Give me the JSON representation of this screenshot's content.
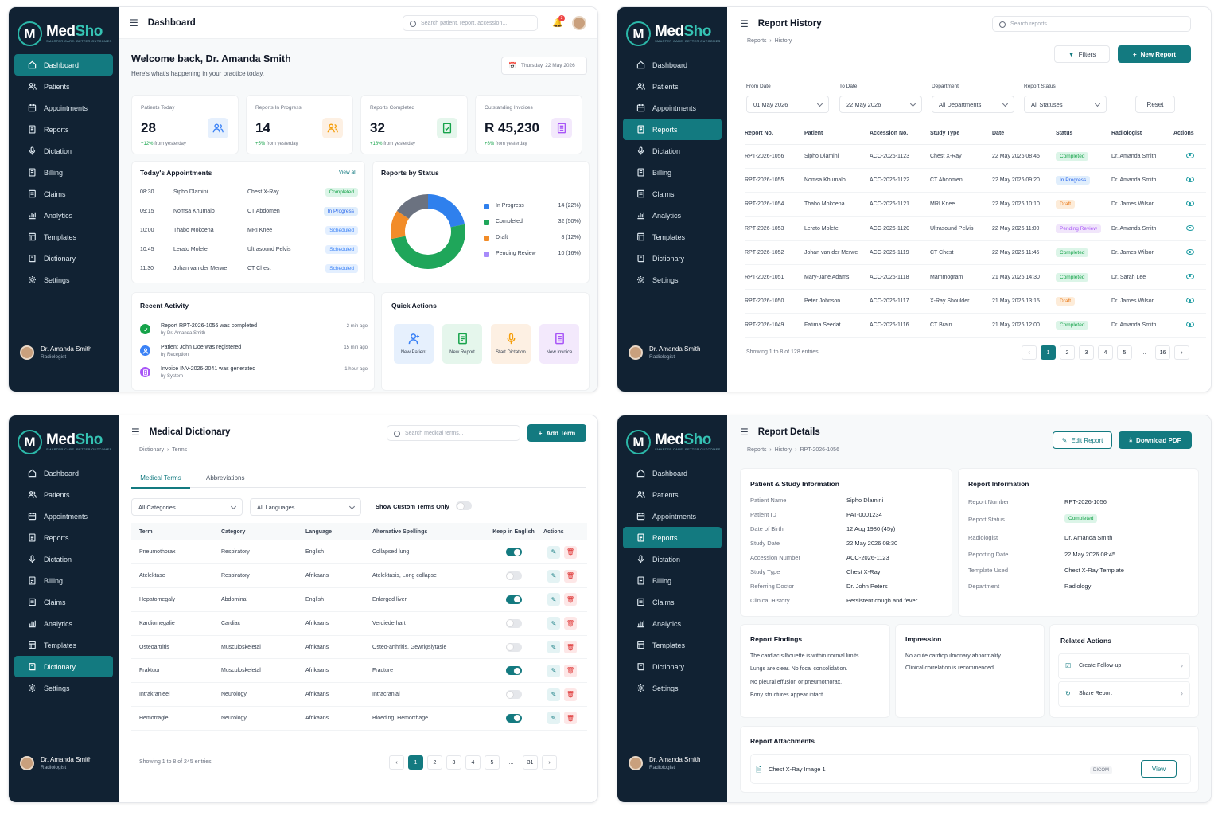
{
  "brand": {
    "name_a": "Med",
    "name_b": "Sho",
    "tagline": "SMARTER CARE. BETTER OUTCOMES",
    "logo_letter": "M"
  },
  "nav": [
    {
      "label": "Dashboard",
      "icon": "home-icon"
    },
    {
      "label": "Patients",
      "icon": "users-icon"
    },
    {
      "label": "Appointments",
      "icon": "calendar-icon"
    },
    {
      "label": "Reports",
      "icon": "report-icon"
    },
    {
      "label": "Dictation",
      "icon": "microphone-icon"
    },
    {
      "label": "Billing",
      "icon": "billing-icon"
    },
    {
      "label": "Claims",
      "icon": "claims-icon"
    },
    {
      "label": "Analytics",
      "icon": "analytics-icon"
    },
    {
      "label": "Templates",
      "icon": "template-icon"
    },
    {
      "label": "Dictionary",
      "icon": "dictionary-icon"
    },
    {
      "label": "Settings",
      "icon": "gear-icon"
    }
  ],
  "user": {
    "name": "Dr. Amanda Smith",
    "role": "Radiologist"
  },
  "dashboard": {
    "title": "Dashboard",
    "search_placeholder": "Search patient, report, accession...",
    "notif_count": "3",
    "welcome": "Welcome back, Dr. Amanda Smith",
    "subtitle": "Here's what's happening in your practice today.",
    "date": "Thursday, 22 May 2026",
    "stats": [
      {
        "label": "Patients Today",
        "value": "28",
        "change": "+12%",
        "note": "from yesterday",
        "color": "#3b82f6",
        "icon": "users-icon"
      },
      {
        "label": "Reports In Progress",
        "value": "14",
        "change": "+5%",
        "note": "from yesterday",
        "color": "#f59e0b",
        "icon": "users-icon"
      },
      {
        "label": "Reports Completed",
        "value": "32",
        "change": "+18%",
        "note": "from yesterday",
        "color": "#16a34a",
        "icon": "report-check-icon"
      },
      {
        "label": "Outstanding Invoices",
        "value": "R 45,230",
        "change": "+8%",
        "note": "from yesterday",
        "color": "#a855f7",
        "icon": "invoice-icon"
      }
    ],
    "appointments": {
      "title": "Today's Appointments",
      "view_all": "View all",
      "rows": [
        {
          "time": "08:30",
          "name": "Sipho Dlamini",
          "study": "Chest X-Ray",
          "status": "Completed",
          "cls": "completed"
        },
        {
          "time": "09:15",
          "name": "Nomsa Khumalo",
          "study": "CT Abdomen",
          "status": "In Progress",
          "cls": "progress"
        },
        {
          "time": "10:00",
          "name": "Thabo Mokoena",
          "study": "MRI Knee",
          "status": "Scheduled",
          "cls": "scheduled"
        },
        {
          "time": "10:45",
          "name": "Lerato Molefe",
          "study": "Ultrasound Pelvis",
          "status": "Scheduled",
          "cls": "scheduled"
        },
        {
          "time": "11:30",
          "name": "Johan van der Merwe",
          "study": "CT Chest",
          "status": "Scheduled",
          "cls": "scheduled"
        }
      ]
    },
    "chart_data": {
      "type": "pie",
      "title": "Reports by Status",
      "categories": [
        "In Progress",
        "Completed",
        "Draft",
        "Pending Review"
      ],
      "values": [
        14,
        32,
        8,
        10
      ],
      "labels": [
        "14 (22%)",
        "32 (50%)",
        "8 (12%)",
        "10 (16%)"
      ],
      "colors": [
        "#2f80ed",
        "#1fa65a",
        "#f28c28",
        "#6b7280"
      ],
      "legend_colors": [
        "#2f80ed",
        "#1fa65a",
        "#f28c28",
        "#a78bfa"
      ]
    },
    "activity": {
      "title": "Recent Activity",
      "items": [
        {
          "pre": "Report ",
          "bold": "RPT-2026-1056",
          "post": " was completed",
          "by": "by Dr. Amanda Smith",
          "time": "2 min ago",
          "color": "#16a34a",
          "icon": "check-icon"
        },
        {
          "pre": "Patient ",
          "bold": "John Doe",
          "post": " was registered",
          "by": "by Reception",
          "time": "15 min ago",
          "color": "#3b82f6",
          "icon": "user-icon"
        },
        {
          "pre": "Invoice ",
          "bold": "INV-2026-2041",
          "post": " was generated",
          "by": "by System",
          "time": "1 hour ago",
          "color": "#a855f7",
          "icon": "invoice-icon"
        }
      ]
    },
    "quick_actions": {
      "title": "Quick Actions",
      "items": [
        {
          "label": "New Patient",
          "bg": "#e6f0fd",
          "color": "#3b82f6",
          "icon": "user-plus-icon"
        },
        {
          "label": "New Report",
          "bg": "#e5f6ec",
          "color": "#16a34a",
          "icon": "report-icon"
        },
        {
          "label": "Start Dictation",
          "bg": "#fdf0e3",
          "color": "#f59e0b",
          "icon": "microphone-icon"
        },
        {
          "label": "New Invoice",
          "bg": "#f3e9fc",
          "color": "#a855f7",
          "icon": "invoice-icon"
        }
      ]
    }
  },
  "history": {
    "title": "Report History",
    "crumb_a": "Reports",
    "crumb_b": "History",
    "search_placeholder": "Search reports...",
    "filters_label": "Filters",
    "new_report_label": "New Report",
    "from_label": "From Date",
    "from_value": "01 May 2026",
    "to_label": "To Date",
    "to_value": "22 May 2026",
    "dept_label": "Department",
    "dept_value": "All Departments",
    "status_label": "Report Status",
    "status_value": "All Statuses",
    "reset_label": "Reset",
    "columns": [
      "Report No.",
      "Patient",
      "Accession No.",
      "Study Type",
      "Date",
      "Status",
      "Radiologist",
      "Actions"
    ],
    "rows": [
      {
        "no": "RPT-2026-1056",
        "patient": "Sipho Dlamini",
        "acc": "ACC-2026-1123",
        "study": "Chest X-Ray",
        "date": "22 May 2026 08:45",
        "status": "Completed",
        "cls": "completed",
        "rad": "Dr. Amanda Smith"
      },
      {
        "no": "RPT-2026-1055",
        "patient": "Nomsa Khumalo",
        "acc": "ACC-2026-1122",
        "study": "CT Abdomen",
        "date": "22 May 2026 09:20",
        "status": "In Progress",
        "cls": "progress",
        "rad": "Dr. Amanda Smith"
      },
      {
        "no": "RPT-2026-1054",
        "patient": "Thabo Mokoena",
        "acc": "ACC-2026-1121",
        "study": "MRI Knee",
        "date": "22 May 2026 10:10",
        "status": "Draft",
        "cls": "draft",
        "rad": "Dr. James Wilson"
      },
      {
        "no": "RPT-2026-1053",
        "patient": "Lerato Molefe",
        "acc": "ACC-2026-1120",
        "study": "Ultrasound Pelvis",
        "date": "22 May 2026 11:00",
        "status": "Pending Review",
        "cls": "pending",
        "rad": "Dr. Amanda Smith"
      },
      {
        "no": "RPT-2026-1052",
        "patient": "Johan van der Merwe",
        "acc": "ACC-2026-1119",
        "study": "CT Chest",
        "date": "22 May 2026 11:45",
        "status": "Completed",
        "cls": "completed",
        "rad": "Dr. James Wilson"
      },
      {
        "no": "RPT-2026-1051",
        "patient": "Mary-Jane Adams",
        "acc": "ACC-2026-1118",
        "study": "Mammogram",
        "date": "21 May 2026 14:30",
        "status": "Completed",
        "cls": "completed",
        "rad": "Dr. Sarah Lee"
      },
      {
        "no": "RPT-2026-1050",
        "patient": "Peter Johnson",
        "acc": "ACC-2026-1117",
        "study": "X-Ray Shoulder",
        "date": "21 May 2026 13:15",
        "status": "Draft",
        "cls": "draft",
        "rad": "Dr. James Wilson"
      },
      {
        "no": "RPT-2026-1049",
        "patient": "Fatima Seedat",
        "acc": "ACC-2026-1116",
        "study": "CT Brain",
        "date": "21 May 2026 12:00",
        "status": "Completed",
        "cls": "completed",
        "rad": "Dr. Amanda Smith"
      }
    ],
    "showing": "Showing 1 to 8 of 128 entries",
    "pages": [
      "1",
      "2",
      "3",
      "4",
      "5",
      "...",
      "16"
    ]
  },
  "dictionary": {
    "title": "Medical Dictionary",
    "crumb_a": "Dictionary",
    "crumb_b": "Terms",
    "search_placeholder": "Search medical terms...",
    "add_label": "Add Term",
    "tab_terms": "Medical Terms",
    "tab_abbr": "Abbreviations",
    "cat_value": "All Categories",
    "lang_value": "All Languages",
    "custom_label": "Show Custom Terms Only",
    "columns": [
      "Term",
      "Category",
      "Language",
      "Alternative Spellings",
      "Keep in English",
      "Actions"
    ],
    "rows": [
      {
        "term": "Pneumothorax",
        "cat": "Respiratory",
        "lang": "English",
        "alt": "Collapsed lung",
        "keep": true
      },
      {
        "term": "Atelektase",
        "cat": "Respiratory",
        "lang": "Afrikaans",
        "alt": "Atelektasis, Long collapse",
        "keep": false
      },
      {
        "term": "Hepatomegaly",
        "cat": "Abdominal",
        "lang": "English",
        "alt": "Enlarged liver",
        "keep": true
      },
      {
        "term": "Kardiomegalie",
        "cat": "Cardiac",
        "lang": "Afrikaans",
        "alt": "Verdiede hart",
        "keep": false
      },
      {
        "term": "Osteoartritis",
        "cat": "Musculoskeletal",
        "lang": "Afrikaans",
        "alt": "Osteo-arthritis, Gewrigslytasie",
        "keep": false
      },
      {
        "term": "Fraktuur",
        "cat": "Musculoskeletal",
        "lang": "Afrikaans",
        "alt": "Fracture",
        "keep": true
      },
      {
        "term": "Intrakranieel",
        "cat": "Neurology",
        "lang": "Afrikaans",
        "alt": "Intracranial",
        "keep": false
      },
      {
        "term": "Hemorragie",
        "cat": "Neurology",
        "lang": "Afrikaans",
        "alt": "Bloeding, Hemorrhage",
        "keep": true
      }
    ],
    "showing": "Showing 1 to 8 of 245 entries",
    "pages": [
      "1",
      "2",
      "3",
      "4",
      "5",
      "...",
      "31"
    ]
  },
  "details": {
    "title": "Report Details",
    "crumb_a": "Reports",
    "crumb_b": "History",
    "crumb_c": "RPT-2026-1056",
    "edit_label": "Edit Report",
    "pdf_label": "Download PDF",
    "patient_title": "Patient & Study Information",
    "patient_rows": [
      {
        "label": "Patient Name",
        "value": "Sipho Dlamini"
      },
      {
        "label": "Patient ID",
        "value": "PAT-0001234"
      },
      {
        "label": "Date of Birth",
        "value": "12 Aug 1980 (45y)"
      },
      {
        "label": "Study Date",
        "value": "22 May 2026 08:30"
      },
      {
        "label": "Accession Number",
        "value": "ACC-2026-1123"
      },
      {
        "label": "Study Type",
        "value": "Chest X-Ray"
      },
      {
        "label": "Referring Doctor",
        "value": "Dr. John Peters"
      },
      {
        "label": "Clinical History",
        "value": "Persistent cough and fever."
      }
    ],
    "report_title": "Report Information",
    "report_rows": [
      {
        "label": "Report Number",
        "value": "RPT-2026-1056"
      },
      {
        "label": "Report Status",
        "value": "Completed"
      },
      {
        "label": "Radiologist",
        "value": "Dr. Amanda Smith"
      },
      {
        "label": "Reporting Date",
        "value": "22 May 2026 08:45"
      },
      {
        "label": "Template Used",
        "value": "Chest X-Ray Template"
      },
      {
        "label": "Department",
        "value": "Radiology"
      }
    ],
    "findings_title": "Report Findings",
    "findings": [
      "The cardiac silhouette is within normal limits.",
      "Lungs are clear. No focal consolidation.",
      "No pleural effusion or pneumothorax.",
      "Bony structures appear intact."
    ],
    "impression_title": "Impression",
    "impression": [
      "No acute cardiopulmonary abnormality.",
      "Clinical correlation is recommended."
    ],
    "related_title": "Related Actions",
    "related": [
      "Create Follow-up",
      "Share Report"
    ],
    "attach_title": "Report Attachments",
    "attach_name": "Chest X-Ray Image 1",
    "attach_type": "DICOM",
    "view_label": "View"
  }
}
